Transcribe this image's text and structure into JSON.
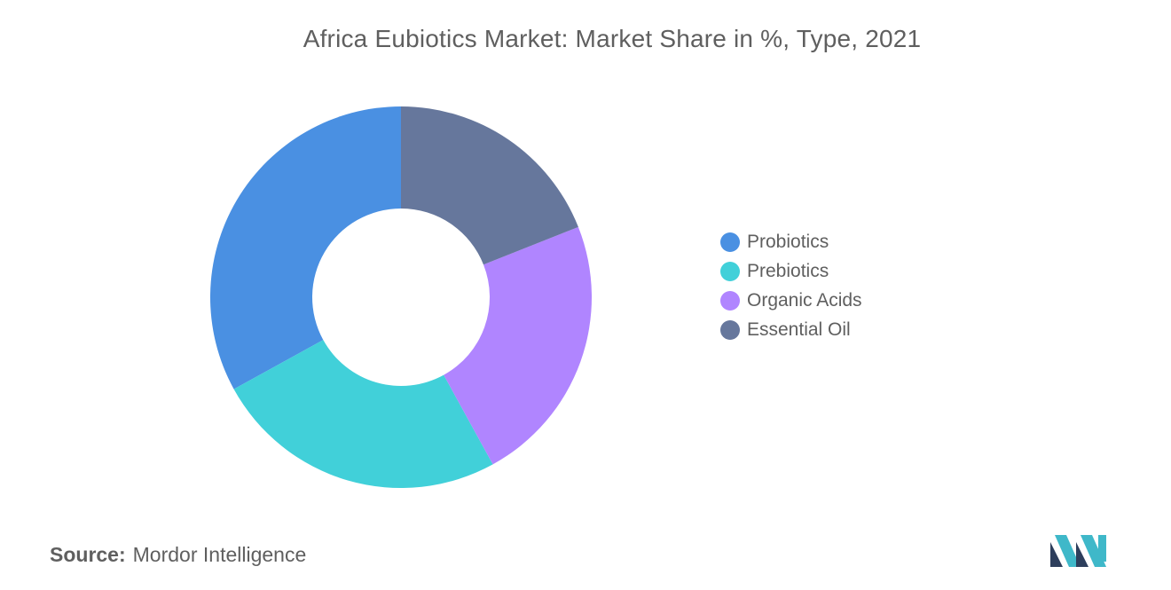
{
  "title": "Africa Eubiotics Market: Market Share in %, Type, 2021",
  "source": {
    "label": "Source:",
    "value": "Mordor Intelligence"
  },
  "chart_data": {
    "type": "pie",
    "donut": true,
    "title": "Africa Eubiotics Market: Market Share in %, Type, 2021",
    "legend_position": "right",
    "categories": [
      "Probiotics",
      "Prebiotics",
      "Organic Acids",
      "Essential Oil"
    ],
    "values": [
      33,
      25,
      23,
      19
    ],
    "colors": [
      "#4a90e2",
      "#41d0d9",
      "#b085ff",
      "#66779c"
    ],
    "start_angle_deg": 90,
    "direction": "counterclockwise"
  },
  "legend": {
    "items": [
      {
        "label": "Probiotics",
        "color": "#4a90e2"
      },
      {
        "label": "Prebiotics",
        "color": "#41d0d9"
      },
      {
        "label": "Organic Acids",
        "color": "#b085ff"
      },
      {
        "label": "Essential Oil",
        "color": "#66779c"
      }
    ]
  },
  "logo": {
    "icon": "mordor-intelligence-logo-icon",
    "colors": [
      "#2d3e5c",
      "#3fb8c9"
    ]
  }
}
